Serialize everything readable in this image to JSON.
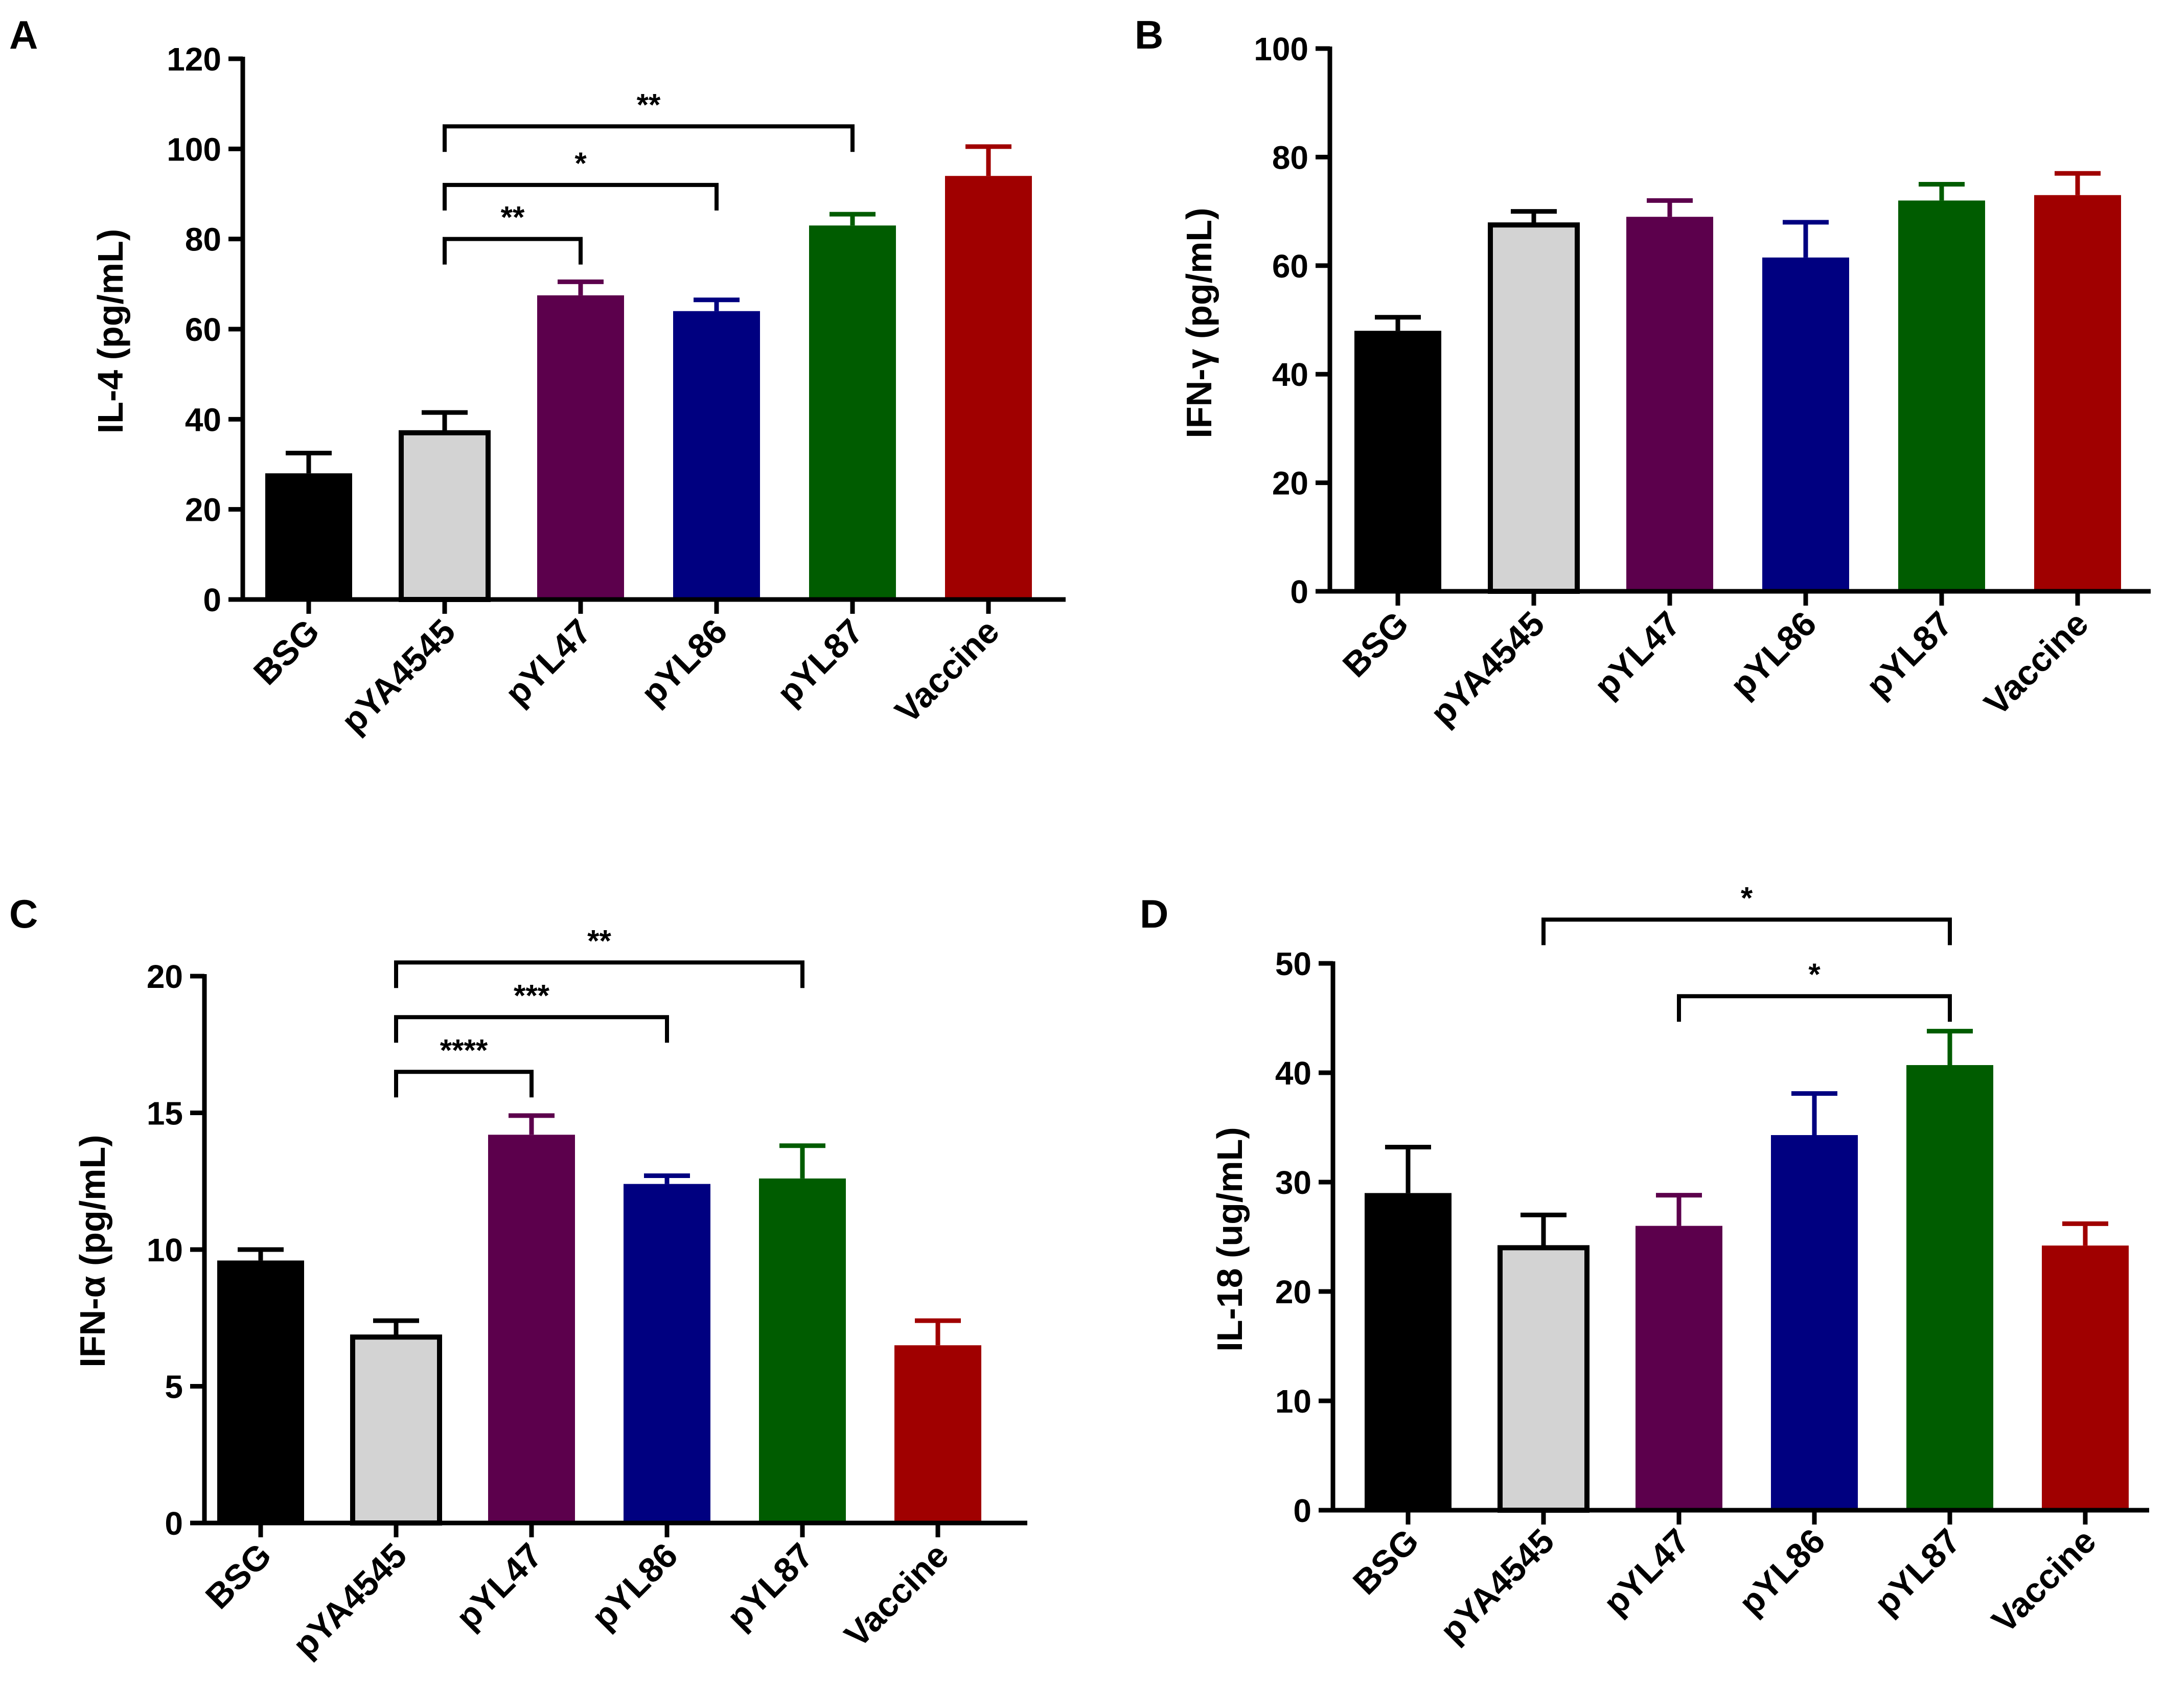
{
  "figure": {
    "background": "#ffffff"
  },
  "palette": {
    "BSG": "#000000",
    "pYA4545": "#d3d3d3",
    "pYL47": "#5c004c",
    "pYL86": "#000080",
    "pYL87": "#005c00",
    "Vaccine": "#a00000"
  },
  "chart_data": [
    {
      "panel": "A",
      "type": "bar",
      "categories": [
        "BSG",
        "pYA4545",
        "pYL47",
        "pYL86",
        "pYL87",
        "Vaccine"
      ],
      "values": [
        28,
        37,
        67.5,
        64,
        83,
        94
      ],
      "error": [
        4.5,
        4.5,
        3,
        2.5,
        2.5,
        6.5
      ],
      "ylabel": "IL-4 (pg/mL)",
      "ylim": [
        0,
        120
      ],
      "yticks": [
        0,
        20,
        40,
        60,
        80,
        100,
        120
      ],
      "significance": [
        {
          "from": "pYA4545",
          "to": "pYL47",
          "label": "**",
          "level": 80
        },
        {
          "from": "pYA4545",
          "to": "pYL86",
          "label": "*",
          "level": 92
        },
        {
          "from": "pYA4545",
          "to": "pYL87",
          "label": "**",
          "level": 105
        }
      ]
    },
    {
      "panel": "B",
      "type": "bar",
      "categories": [
        "BSG",
        "pYA4545",
        "pYL47",
        "pYL86",
        "pYL87",
        "Vaccine"
      ],
      "values": [
        48,
        67.5,
        69,
        61.5,
        72,
        73
      ],
      "error": [
        2.5,
        2.5,
        3,
        6.5,
        3,
        4
      ],
      "ylabel": "IFN-γ (pg/mL)",
      "ylim": [
        0,
        100
      ],
      "yticks": [
        0,
        20,
        40,
        60,
        80,
        100
      ],
      "significance": []
    },
    {
      "panel": "C",
      "type": "bar",
      "categories": [
        "BSG",
        "pYA4545",
        "pYL47",
        "pYL86",
        "pYL87",
        "Vaccine"
      ],
      "values": [
        9.6,
        6.8,
        14.2,
        12.4,
        12.6,
        6.5
      ],
      "error": [
        0.4,
        0.6,
        0.7,
        0.3,
        1.2,
        0.9
      ],
      "ylabel": "IFN-α (pg/mL)",
      "ylim": [
        0,
        20
      ],
      "yticks": [
        0,
        5,
        10,
        15,
        20
      ],
      "significance": [
        {
          "from": "pYA4545",
          "to": "pYL47",
          "label": "****",
          "level": 16.5
        },
        {
          "from": "pYA4545",
          "to": "pYL86",
          "label": "***",
          "level": 18.5
        },
        {
          "from": "pYA4545",
          "to": "pYL87",
          "label": "**",
          "level": 20.5
        }
      ]
    },
    {
      "panel": "D",
      "type": "bar",
      "categories": [
        "BSG",
        "pYA4545",
        "pYL47",
        "pYL86",
        "pYL87",
        "Vaccine"
      ],
      "values": [
        29,
        24,
        26,
        34.3,
        40.7,
        24.2
      ],
      "error": [
        4.2,
        3,
        2.8,
        3.8,
        3.1,
        2
      ],
      "ylabel": "IL-18 (ug/mL)",
      "ylim": [
        0,
        50
      ],
      "yticks": [
        0,
        10,
        20,
        30,
        40,
        50
      ],
      "significance": [
        {
          "from": "pYL47",
          "to": "pYL87",
          "label": "*",
          "level": 47
        },
        {
          "from": "pYA4545",
          "to": "pYL87",
          "label": "*",
          "level": 54
        }
      ]
    }
  ]
}
